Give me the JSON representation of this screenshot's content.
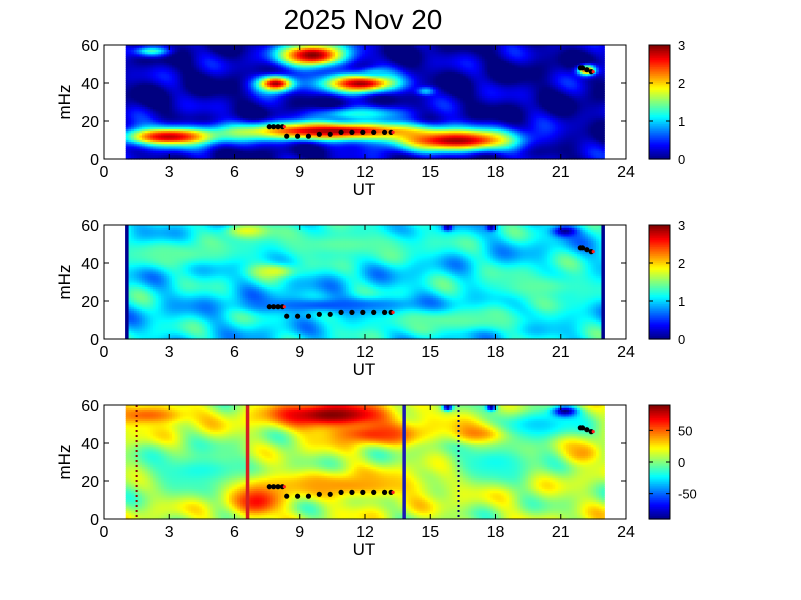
{
  "chart_data": {
    "type": "heatmap",
    "title": "2025 Nov 20",
    "panels": [
      {
        "xlabel": "UT",
        "ylabel": "mHz",
        "xlim": [
          0,
          24
        ],
        "ylim": [
          0,
          60
        ],
        "xticks": [
          0,
          3,
          6,
          9,
          12,
          15,
          18,
          21,
          24
        ],
        "yticks": [
          0,
          20,
          40,
          60
        ],
        "data_range": [
          1,
          23
        ],
        "colormap": "jet",
        "clim": [
          0,
          3
        ],
        "colorbar_ticks": [
          0,
          1,
          2,
          3
        ],
        "background_level": 0.1,
        "features": [
          {
            "x": 9.6,
            "y": 55,
            "wx": 1.1,
            "wy": 4.5,
            "v": 3
          },
          {
            "x": 11.8,
            "y": 40,
            "wx": 1.2,
            "wy": 3.5,
            "v": 2.9
          },
          {
            "x": 7.9,
            "y": 40,
            "wx": 0.6,
            "wy": 3,
            "v": 2.9
          },
          {
            "x": 3,
            "y": 12,
            "wx": 1.6,
            "wy": 3.5,
            "v": 2.8
          },
          {
            "x": 10.5,
            "y": 15,
            "wx": 3.3,
            "wy": 3.5,
            "v": 2.9
          },
          {
            "x": 16.2,
            "y": 10,
            "wx": 2,
            "wy": 4,
            "v": 2.9
          },
          {
            "x": 11.7,
            "y": 24,
            "wx": 1.5,
            "wy": 2.5,
            "v": 1.2
          },
          {
            "x": 2.2,
            "y": 57,
            "wx": 0.6,
            "wy": 2,
            "v": 1.3
          },
          {
            "x": 22.2,
            "y": 47,
            "wx": 0.3,
            "wy": 2,
            "v": 2.5
          },
          {
            "x": 14.8,
            "y": 36,
            "wx": 0.3,
            "wy": 1.5,
            "v": 1
          },
          {
            "x": 12.5,
            "y": 46,
            "wx": 0.5,
            "wy": 1.5,
            "v": 1
          }
        ],
        "markers": [
          {
            "x": [
              7.6,
              7.8,
              8.0,
              8.2
            ],
            "y": [
              17,
              17,
              17,
              17
            ]
          },
          {
            "x": [
              8.4,
              8.9,
              9.4,
              9.9,
              10.4,
              10.9,
              11.4,
              11.9,
              12.4,
              12.9,
              13.2
            ],
            "y": [
              12,
              12,
              12,
              13,
              13,
              14,
              14,
              14,
              14,
              14,
              14
            ]
          },
          {
            "x": [
              21.9,
              22.0,
              22.2,
              22.4
            ],
            "y": [
              48,
              48,
              47,
              46
            ]
          }
        ],
        "vlines": []
      },
      {
        "xlabel": "UT",
        "ylabel": "mHz",
        "xlim": [
          0,
          24
        ],
        "ylim": [
          0,
          60
        ],
        "xticks": [
          0,
          3,
          6,
          9,
          12,
          15,
          18,
          21,
          24
        ],
        "yticks": [
          0,
          20,
          40,
          60
        ],
        "data_range": [
          1,
          23
        ],
        "colormap": "jet",
        "clim": [
          0,
          3
        ],
        "colorbar_ticks": [
          0,
          1,
          2,
          3
        ],
        "background_level": 1.05,
        "features": [
          {
            "x": 6.6,
            "y": 57,
            "wx": 0.8,
            "wy": 3,
            "v": 1.9
          },
          {
            "x": 7.8,
            "y": 36,
            "wx": 0.7,
            "wy": 2.5,
            "v": 1.8
          },
          {
            "x": 3.5,
            "y": 45,
            "wx": 2,
            "wy": 5,
            "v": 1.4
          },
          {
            "x": 11,
            "y": 50,
            "wx": 3,
            "wy": 6,
            "v": 1.4
          },
          {
            "x": 10.5,
            "y": 18,
            "wx": 3,
            "wy": 3,
            "v": 0.6
          },
          {
            "x": 20,
            "y": 28,
            "wx": 2,
            "wy": 6,
            "v": 1.4
          },
          {
            "x": 16,
            "y": 10,
            "wx": 3,
            "wy": 4,
            "v": 1.4
          },
          {
            "x": 21.2,
            "y": 57,
            "wx": 0.4,
            "wy": 2,
            "v": 0.05
          },
          {
            "x": 15.8,
            "y": 59,
            "wx": 0.15,
            "wy": 1.2,
            "v": 0.05
          },
          {
            "x": 17.8,
            "y": 59,
            "wx": 0.15,
            "wy": 1.2,
            "v": 0.05
          }
        ],
        "markers": [
          {
            "x": [
              7.6,
              7.8,
              8.0,
              8.2
            ],
            "y": [
              17,
              17,
              17,
              17
            ]
          },
          {
            "x": [
              8.4,
              8.9,
              9.4,
              9.9,
              10.4,
              10.9,
              11.4,
              11.9,
              12.4,
              12.9,
              13.2
            ],
            "y": [
              12,
              12,
              12,
              13,
              13,
              14,
              14,
              14,
              14,
              14,
              14
            ]
          },
          {
            "x": [
              21.9,
              22.0,
              22.2,
              22.4
            ],
            "y": [
              48,
              48,
              47,
              46
            ]
          }
        ],
        "vlines": [
          {
            "x": 1.05,
            "color": "#00008f",
            "style": "solid"
          },
          {
            "x": 22.95,
            "color": "#00008f",
            "style": "solid"
          }
        ]
      },
      {
        "xlabel": "UT",
        "ylabel": "mHz",
        "xlim": [
          0,
          24
        ],
        "ylim": [
          0,
          60
        ],
        "xticks": [
          0,
          3,
          6,
          9,
          12,
          15,
          18,
          21,
          24
        ],
        "yticks": [
          0,
          20,
          40,
          60
        ],
        "data_range": [
          1,
          23
        ],
        "colormap": "jet",
        "clim": [
          -90,
          90
        ],
        "colorbar_ticks": [
          -50,
          0,
          50
        ],
        "background_level": 10,
        "features": [
          {
            "x": 10.5,
            "y": 55,
            "wx": 2,
            "wy": 5,
            "v": 90
          },
          {
            "x": 12.5,
            "y": 45,
            "wx": 1.5,
            "wy": 4,
            "v": 60
          },
          {
            "x": 7,
            "y": 12,
            "wx": 0.8,
            "wy": 7,
            "v": 80
          },
          {
            "x": 2,
            "y": 55,
            "wx": 1.5,
            "wy": 4,
            "v": 50
          },
          {
            "x": 17.5,
            "y": 45,
            "wx": 1,
            "wy": 4,
            "v": 70
          },
          {
            "x": 18,
            "y": 30,
            "wx": 1.5,
            "wy": 8,
            "v": -20
          },
          {
            "x": 20,
            "y": 50,
            "wx": 1.5,
            "wy": 6,
            "v": -30
          },
          {
            "x": 4.5,
            "y": 25,
            "wx": 2,
            "wy": 8,
            "v": -20
          },
          {
            "x": 11,
            "y": 18,
            "wx": 3,
            "wy": 5,
            "v": 40
          },
          {
            "x": 22,
            "y": 35,
            "wx": 0.6,
            "wy": 4,
            "v": 40
          },
          {
            "x": 21.2,
            "y": 57,
            "wx": 0.4,
            "wy": 2,
            "v": -90
          },
          {
            "x": 15.8,
            "y": 59,
            "wx": 0.15,
            "wy": 1.2,
            "v": -90
          },
          {
            "x": 17.8,
            "y": 59,
            "wx": 0.15,
            "wy": 1.2,
            "v": -90
          }
        ],
        "markers": [
          {
            "x": [
              7.6,
              7.8,
              8.0,
              8.2
            ],
            "y": [
              17,
              17,
              17,
              17
            ]
          },
          {
            "x": [
              8.4,
              8.9,
              9.4,
              9.9,
              10.4,
              10.9,
              11.4,
              11.9,
              12.4,
              12.9,
              13.2
            ],
            "y": [
              12,
              12,
              12,
              13,
              13,
              14,
              14,
              14,
              14,
              14,
              14
            ]
          },
          {
            "x": [
              21.9,
              22.0,
              22.2,
              22.4
            ],
            "y": [
              48,
              48,
              47,
              46
            ]
          }
        ],
        "vlines": [
          {
            "x": 6.6,
            "color": "#d62020",
            "style": "solid"
          },
          {
            "x": 13.8,
            "color": "#1a1ab0",
            "style": "solid"
          },
          {
            "x": 1.5,
            "color": "#8b0000",
            "style": "dotted"
          },
          {
            "x": 16.3,
            "color": "#000060",
            "style": "dotted"
          }
        ]
      }
    ]
  }
}
